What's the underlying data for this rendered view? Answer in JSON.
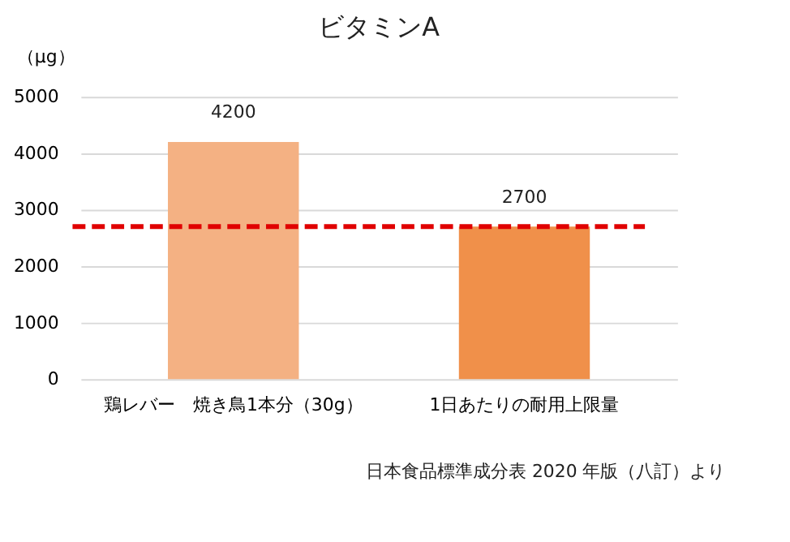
{
  "chart_data": {
    "type": "bar",
    "title": "ビタミンA",
    "ylabel": "（μg）",
    "categories": [
      "鶏レバー　焼き鳥1本分（30g）",
      "1日あたりの耐用上限量"
    ],
    "values": [
      4200,
      2700
    ],
    "colors": [
      "#f4b183",
      "#f0904a"
    ],
    "data_labels": true,
    "ylim": [
      0,
      5000
    ],
    "yticks": [
      0,
      1000,
      2000,
      3000,
      4000,
      5000
    ],
    "grid": "y",
    "ref_lines": [
      {
        "axis": "y",
        "value": 2700,
        "color": "#e00000",
        "line_style": "dashed"
      }
    ],
    "annotations": [
      "日本食品標準成分表 2020 年版（八訂）より"
    ]
  }
}
